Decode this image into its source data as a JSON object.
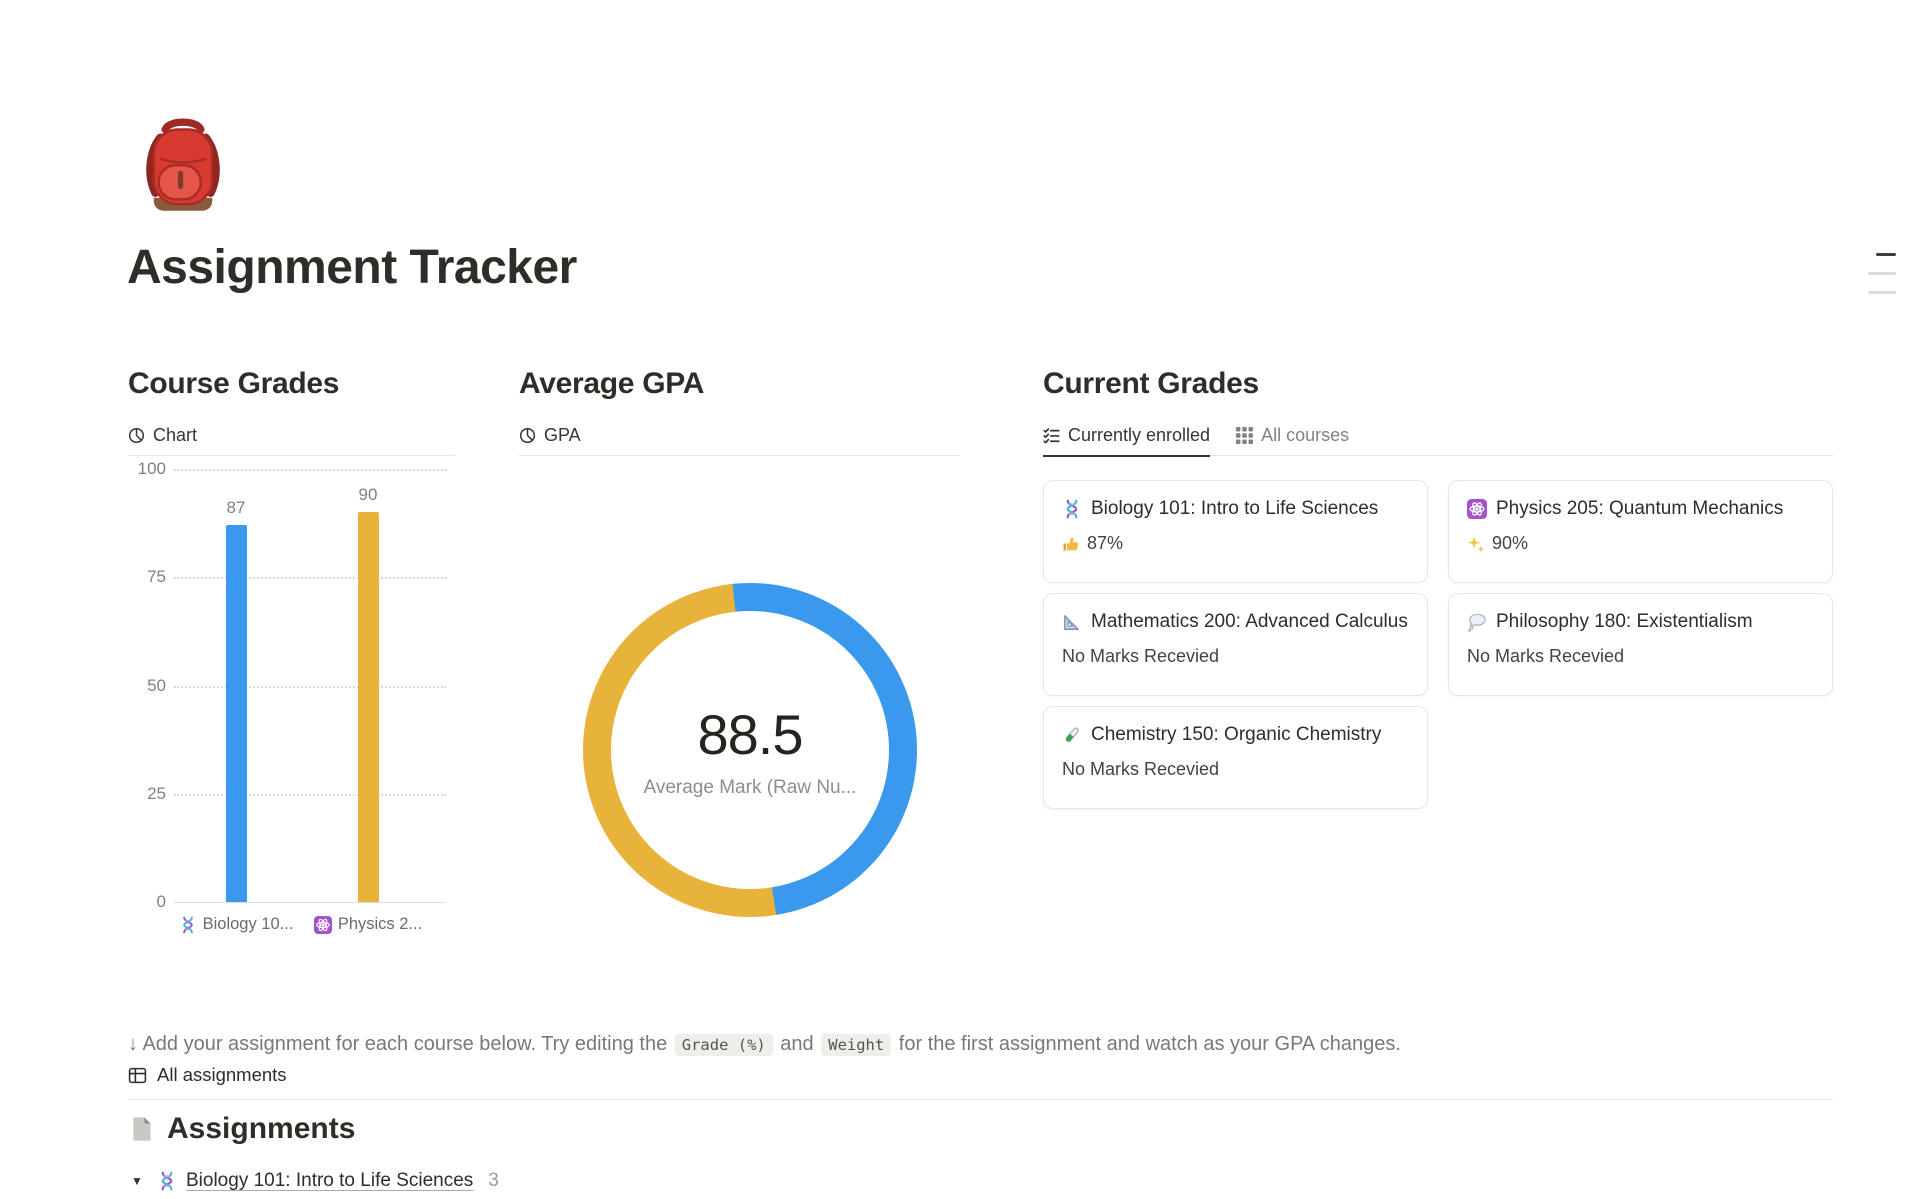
{
  "page": {
    "title": "Assignment Tracker",
    "icon": "backpack-emoji"
  },
  "colors": {
    "accent_blue": "#3A99EC",
    "accent_yellow": "#E7B33B",
    "text_dark": "#37352F",
    "text_gray": "#82807C"
  },
  "course_grades": {
    "heading": "Course Grades",
    "tab": {
      "icon": "pie-chart-icon",
      "label": "Chart"
    }
  },
  "average_gpa": {
    "heading": "Average GPA",
    "tab": {
      "icon": "pie-chart-icon",
      "label": "GPA"
    }
  },
  "current_grades": {
    "heading": "Current Grades",
    "tabs": [
      {
        "icon": "checklist-icon",
        "label": "Currently enrolled",
        "active": true
      },
      {
        "icon": "grid-icon",
        "label": "All courses",
        "active": false
      }
    ],
    "cards": [
      {
        "icon": "dna-icon",
        "title": "Biology 101: Intro to Life Sciences",
        "status_icon": "thumbs-up-icon",
        "status": "87%"
      },
      {
        "icon": "atom-icon",
        "title": "Physics 205: Quantum Mechanics",
        "status_icon": "sparkles-icon",
        "status": "90%"
      },
      {
        "icon": "triangle-ruler-icon",
        "title": "Mathematics 200: Advanced Calculus",
        "status_icon": null,
        "status": "No Marks Recevied"
      },
      {
        "icon": "thought-balloon-icon",
        "title": "Philosophy 180: Existentialism",
        "status_icon": null,
        "status": "No Marks Recevied"
      },
      {
        "icon": "test-tube-icon",
        "title": "Chemistry 150: Organic Chemistry",
        "status_icon": null,
        "status": "No Marks Recevied"
      }
    ]
  },
  "chart_data": [
    {
      "type": "bar",
      "title": "Chart",
      "categories": [
        "Biology 10...",
        "Physics 2..."
      ],
      "category_icons": [
        "dna-icon",
        "atom-icon"
      ],
      "values": [
        87,
        90
      ],
      "bar_labels": [
        "87",
        "90"
      ],
      "colors": [
        "#3A99EC",
        "#E7B33B"
      ],
      "xlabel": "",
      "ylabel": "",
      "ylim": [
        0,
        100
      ],
      "yticks": [
        100,
        75,
        50,
        25,
        0
      ],
      "grid": "dotted-horizontal",
      "legend": "none"
    },
    {
      "type": "pie",
      "subtype": "donut",
      "title": "GPA",
      "center_value": "88.5",
      "center_label": "Average Mark (Raw Nu...",
      "segments": [
        {
          "name": "Biology 101: Intro to Life Sciences",
          "value": 87,
          "color": "#3A99EC"
        },
        {
          "name": "Physics 205: Quantum Mechanics",
          "value": 90,
          "color": "#E7B33B"
        }
      ],
      "legend": "none"
    }
  ],
  "instruction": {
    "prefix": "↓ Add your assignment for each course below. Try editing the ",
    "chip1": "Grade (%)",
    "mid": " and ",
    "chip2": "Weight",
    "suffix": " for the first assignment and watch as your GPA changes."
  },
  "assignments": {
    "view_tab": {
      "icon": "table-icon",
      "label": "All assignments"
    },
    "heading": {
      "icon": "page-icon",
      "label": "Assignments"
    },
    "groups": [
      {
        "toggle": "▼",
        "icon": "dna-icon",
        "title": "Biology 101: Intro to Life Sciences",
        "count": "3"
      }
    ]
  }
}
